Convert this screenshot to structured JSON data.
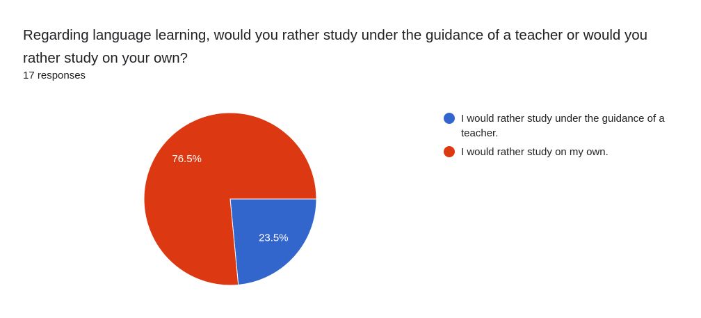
{
  "chart_data": {
    "type": "pie",
    "title": "Regarding language learning, would you rather study under the guidance of a teacher or would you rather study on your own?",
    "subtitle": "17 responses",
    "categories": [
      "I would rather study under the guidance of a teacher.",
      "I would rather study on my own."
    ],
    "values": [
      23.5,
      76.5
    ],
    "value_labels": [
      "23.5%",
      "76.5%"
    ],
    "colors": [
      "#3366cc",
      "#dc3912"
    ],
    "legend": "right"
  }
}
